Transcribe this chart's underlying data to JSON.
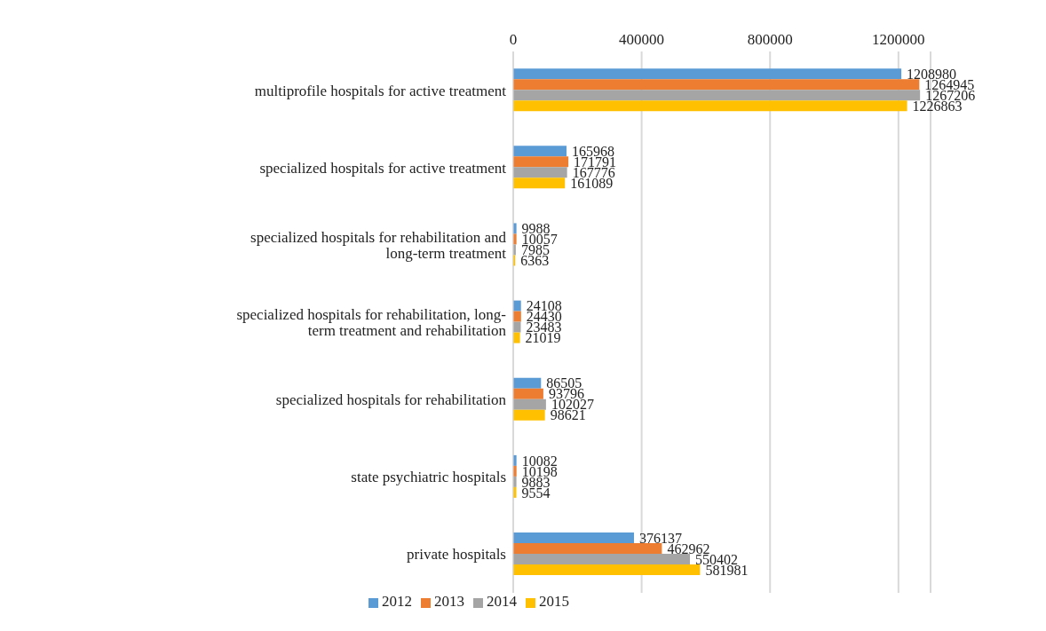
{
  "chart_data": {
    "type": "bar",
    "orientation": "horizontal",
    "categories": [
      "multiprofile hospitals for active treatment",
      "specialized hospitals for active treatment",
      "specialized hospitals for rehabilitation and long-term treatment",
      "specialized hospitals for rehabilitation, long-term treatment and rehabilitation",
      "specialized hospitals for rehabilitation",
      "state psychiatric hospitals",
      "private hospitals"
    ],
    "series": [
      {
        "name": "2012",
        "color": "#5b9bd5",
        "values": [
          1208980,
          165968,
          9988,
          24108,
          86505,
          10082,
          376137
        ]
      },
      {
        "name": "2013",
        "color": "#ed7d31",
        "values": [
          1264945,
          171791,
          10057,
          24430,
          93796,
          10198,
          462962
        ]
      },
      {
        "name": "2014",
        "color": "#a5a5a5",
        "values": [
          1267206,
          167776,
          7985,
          23483,
          102027,
          9883,
          550402
        ]
      },
      {
        "name": "2015",
        "color": "#ffc000",
        "values": [
          1226863,
          161089,
          6363,
          21019,
          98621,
          9554,
          581981
        ]
      }
    ],
    "xlim": [
      0,
      1300000
    ],
    "xticks": [
      0,
      400000,
      800000,
      1200000
    ],
    "grid": "x",
    "legend": "bottom",
    "data_labels": true
  }
}
